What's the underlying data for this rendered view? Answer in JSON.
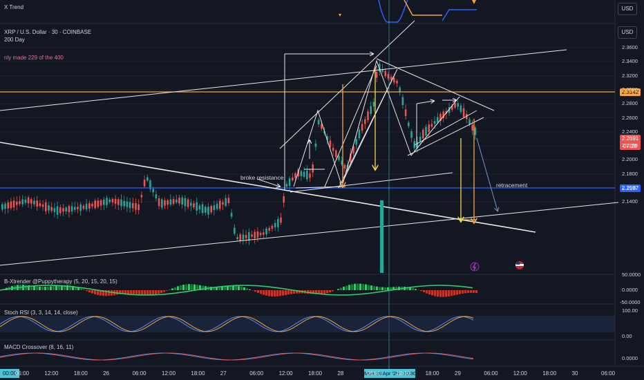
{
  "header": {
    "indicator_top": "X Trend",
    "symbol": "XRP / U.S. Dollar · 30 · COINBASE",
    "ma_label": "200 Day",
    "note": "nly made 229 of the 400",
    "unit_top": "USD",
    "unit_main": "USD"
  },
  "price_axis": {
    "ticks": [
      "2.3600",
      "2.3400",
      "2.3200",
      "2.3000",
      "2.2800",
      "2.2600",
      "2.2400",
      "2.2200",
      "2.2000",
      "2.1800",
      "2.1600",
      "2.1400"
    ],
    "orange_level": "2.3142",
    "blue_level": "2.2187",
    "current_price": "2.2691",
    "countdown": "07:28"
  },
  "annotations": {
    "broke_resistance": "broke resistance",
    "retracement": "retracement"
  },
  "panes": {
    "xtrender": {
      "title": "B-Xtrender @Puppytherapy (5, 20, 15, 20, 15)",
      "ticks": [
        "50.0000",
        "0.0000",
        "-50.0000"
      ]
    },
    "stoch": {
      "title": "Stoch RSI (3, 3, 14, 14, close)",
      "ticks": [
        "100.00",
        "0.00"
      ]
    },
    "macd": {
      "title": "MACD Crossover (8, 16, 11)",
      "ticks": [
        "0.0000"
      ]
    }
  },
  "time_axis": {
    "labels": [
      "06:00",
      "12:00",
      "18:00",
      "26",
      "06:00",
      "12:00",
      "18:00",
      "27",
      "06:00",
      "12:00",
      "18:00",
      "28",
      "06:00",
      "12:00",
      "18:00",
      "29",
      "06:00",
      "12:00",
      "18:00",
      "30",
      "06:00"
    ],
    "left_highlight": "00:00",
    "crosshair_label": "Mon 28 Apr '25   10:30"
  },
  "colors": {
    "background": "#131722",
    "up": "#26a69a",
    "down": "#ef5350",
    "orange_line": "#f7a541",
    "blue_line": "#2962ff",
    "arrow_yellow": "#f5d547",
    "crosshair": "#4fc3d7"
  },
  "icons": [
    "lightning-icon",
    "us-flag-icon"
  ]
}
